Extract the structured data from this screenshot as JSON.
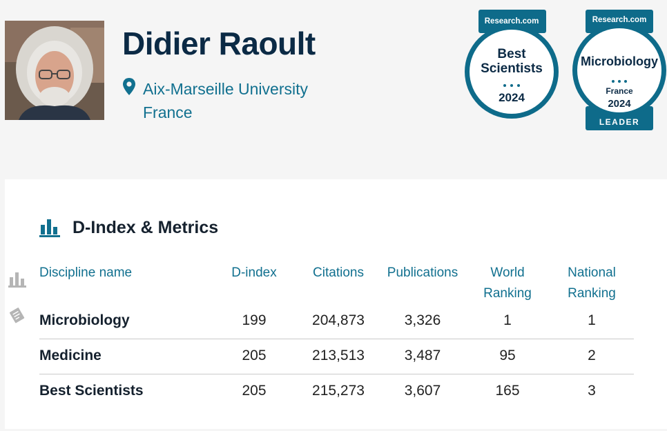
{
  "profile": {
    "name": "Didier Raoult",
    "institution": "Aix-Marseille University",
    "country": "France"
  },
  "badges": [
    {
      "brand": "Research.com",
      "line1": "Best",
      "line2": "Scientists",
      "year": "2024"
    },
    {
      "brand": "Research.com",
      "title": "Microbiology",
      "region": "France",
      "year": "2024",
      "label": "LEADER"
    }
  ],
  "metrics": {
    "title": "D-Index & Metrics",
    "headers": {
      "discipline": "Discipline name",
      "dindex": "D-index",
      "citations": "Citations",
      "publications": "Publications",
      "world1": "World",
      "world2": "Ranking",
      "national1": "National",
      "national2": "Ranking"
    },
    "rows": [
      {
        "discipline": "Microbiology",
        "dindex": "199",
        "citations": "204,873",
        "publications": "3,326",
        "world": "1",
        "national": "1"
      },
      {
        "discipline": "Medicine",
        "dindex": "205",
        "citations": "213,513",
        "publications": "3,487",
        "world": "95",
        "national": "2"
      },
      {
        "discipline": "Best Scientists",
        "dindex": "205",
        "citations": "215,273",
        "publications": "3,607",
        "world": "165",
        "national": "3"
      }
    ]
  },
  "colors": {
    "accent": "#11708f",
    "badge": "#0e6b8a",
    "dark_text": "#0b2a45"
  },
  "icons": {
    "location": "map-pin-icon",
    "metrics": "bar-chart-icon",
    "side_chart": "bar-chart-icon",
    "side_papers": "papers-icon"
  }
}
